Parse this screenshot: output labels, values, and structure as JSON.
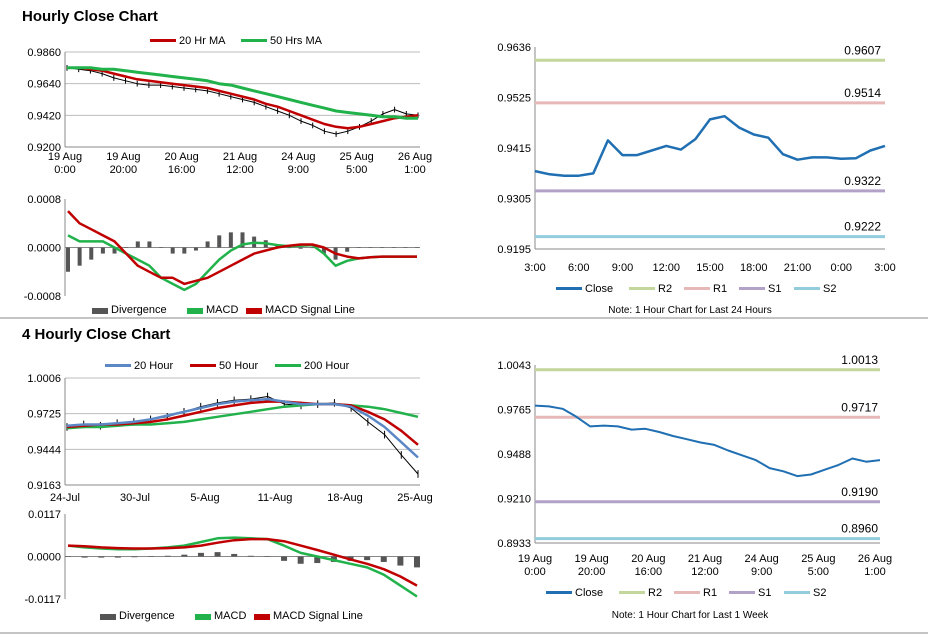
{
  "sections": [
    {
      "title": "Hourly Close Chart"
    },
    {
      "title": "4 Hourly Close Chart"
    }
  ],
  "colors": {
    "close": "#1f6fb2",
    "ma20": "#c00000",
    "ma50": "#21b24b",
    "r2": "#c3d69b",
    "r1": "#e6b9b8",
    "s1": "#b3a2c7",
    "s2": "#93cddd",
    "bars": "#555555",
    "blue_ma": "#5b87c5"
  },
  "chart_data": [
    {
      "id": "hourly_price",
      "type": "line",
      "legend": [
        "20 Hr MA",
        "50 Hrs MA"
      ],
      "ylim": [
        0.92,
        0.986
      ],
      "yticks": [
        "0.9860",
        "0.9640",
        "0.9420",
        "0.9200"
      ],
      "xticks": [
        [
          "19 Aug",
          "0:00"
        ],
        [
          "19 Aug",
          "20:00"
        ],
        [
          "20 Aug",
          "16:00"
        ],
        [
          "21 Aug",
          "12:00"
        ],
        [
          "24 Aug",
          "9:00"
        ],
        [
          "25 Aug",
          "5:00"
        ],
        [
          "26 Aug",
          "1:00"
        ]
      ],
      "price": [
        0.975,
        0.974,
        0.973,
        0.971,
        0.968,
        0.966,
        0.964,
        0.963,
        0.963,
        0.962,
        0.961,
        0.96,
        0.959,
        0.957,
        0.955,
        0.953,
        0.951,
        0.948,
        0.945,
        0.942,
        0.938,
        0.935,
        0.931,
        0.929,
        0.931,
        0.934,
        0.938,
        0.943,
        0.946,
        0.943,
        0.942
      ],
      "series": [
        {
          "name": "20 Hr MA",
          "values": [
            0.975,
            0.975,
            0.974,
            0.973,
            0.971,
            0.969,
            0.967,
            0.966,
            0.965,
            0.964,
            0.963,
            0.962,
            0.961,
            0.959,
            0.957,
            0.955,
            0.953,
            0.95,
            0.948,
            0.945,
            0.942,
            0.939,
            0.936,
            0.934,
            0.933,
            0.934,
            0.936,
            0.938,
            0.94,
            0.941,
            0.942
          ]
        },
        {
          "name": "50 Hrs MA",
          "values": [
            0.975,
            0.975,
            0.975,
            0.974,
            0.974,
            0.973,
            0.972,
            0.971,
            0.97,
            0.969,
            0.968,
            0.967,
            0.966,
            0.964,
            0.963,
            0.961,
            0.959,
            0.957,
            0.955,
            0.953,
            0.951,
            0.949,
            0.947,
            0.945,
            0.944,
            0.943,
            0.942,
            0.941,
            0.941,
            0.94,
            0.94
          ]
        }
      ]
    },
    {
      "id": "hourly_macd",
      "type": "bar",
      "legend": [
        "Divergence",
        "MACD",
        "MACD Signal Line"
      ],
      "ylim": [
        -0.0008,
        0.0008
      ],
      "yticks": [
        "0.0008",
        "0.0000",
        "-0.0008"
      ],
      "macd": [
        0.0002,
        0.0001,
        0.0001,
        0.0001,
        0.0,
        -0.0001,
        -0.0002,
        -0.0003,
        -0.0005,
        -0.0006,
        -0.0007,
        -0.0006,
        -0.0004,
        -0.0002,
        -5e-05,
        5e-05,
        8e-05,
        7e-05,
        4e-05,
        2e-05,
        3e-05,
        4e-05,
        -0.0001,
        -0.0003,
        -0.00022,
        -0.00018,
        -0.00016,
        -0.00015,
        -0.00015,
        -0.00015,
        -0.00015
      ],
      "signal": [
        0.0006,
        0.0004,
        0.0003,
        0.0002,
        0.0001,
        -0.0001,
        -0.0003,
        -0.0004,
        -0.0005,
        -0.0005,
        -0.0006,
        -0.00055,
        -0.0005,
        -0.0004,
        -0.0003,
        -0.0002,
        -0.0001,
        -5e-05,
        0.0,
        3e-05,
        5e-05,
        5e-05,
        0.0,
        -0.0001,
        -0.00015,
        -0.00018,
        -0.00016,
        -0.00015,
        -0.00015,
        -0.00015,
        -0.00015
      ],
      "divergence": [
        -0.0004,
        -0.0003,
        -0.0002,
        -0.0001,
        -0.0001,
        0.0,
        0.0001,
        0.0001,
        0.0,
        -0.0001,
        -0.0001,
        -5e-05,
        0.0001,
        0.0002,
        0.00025,
        0.00025,
        0.00018,
        0.00012,
        4e-05,
        -1e-05,
        -2e-05,
        -1e-05,
        -0.0001,
        -0.0002,
        -7e-05,
        0.0,
        0.0,
        0.0,
        0.0,
        0.0,
        0.0
      ]
    },
    {
      "id": "hourly_levels",
      "type": "line",
      "legend": [
        "Close",
        "R2",
        "R1",
        "S1",
        "S2"
      ],
      "note": "Note: 1 Hour Chart for Last 24 Hours",
      "ylim": [
        0.9195,
        0.9636
      ],
      "yticks": [
        "0.9636",
        "0.9525",
        "0.9415",
        "0.9305",
        "0.9195"
      ],
      "xticks": [
        "3:00",
        "6:00",
        "9:00",
        "12:00",
        "15:00",
        "18:00",
        "21:00",
        "0:00",
        "3:00"
      ],
      "levels": {
        "R2": "0.9607",
        "R1": "0.9514",
        "S1": "0.9322",
        "S2": "0.9222"
      },
      "level_values": [
        0.9607,
        0.9514,
        0.9322,
        0.9222
      ],
      "close": [
        0.9365,
        0.9358,
        0.9355,
        0.9355,
        0.936,
        0.9432,
        0.94,
        0.94,
        0.941,
        0.942,
        0.9412,
        0.9435,
        0.9478,
        0.9485,
        0.946,
        0.9445,
        0.9438,
        0.9402,
        0.939,
        0.9395,
        0.9395,
        0.9392,
        0.9393,
        0.941,
        0.942
      ]
    },
    {
      "id": "4h_price",
      "type": "line",
      "legend": [
        "20 Hour",
        "50 Hour",
        "200 Hour"
      ],
      "ylim": [
        0.9163,
        1.0006
      ],
      "yticks": [
        "1.0006",
        "0.9725",
        "0.9444",
        "0.9163"
      ],
      "xticks": [
        "24-Jul",
        "30-Jul",
        "5-Aug",
        "11-Aug",
        "18-Aug",
        "25-Aug"
      ],
      "price": [
        0.962,
        0.964,
        0.963,
        0.965,
        0.966,
        0.968,
        0.97,
        0.974,
        0.978,
        0.981,
        0.983,
        0.984,
        0.986,
        0.98,
        0.979,
        0.98,
        0.981,
        0.977,
        0.966,
        0.956,
        0.94,
        0.925
      ],
      "series": [
        {
          "name": "20 Hour",
          "values": [
            0.963,
            0.964,
            0.964,
            0.965,
            0.966,
            0.968,
            0.971,
            0.974,
            0.977,
            0.98,
            0.982,
            0.983,
            0.984,
            0.982,
            0.98,
            0.98,
            0.98,
            0.978,
            0.971,
            0.962,
            0.95,
            0.938
          ]
        },
        {
          "name": "50 Hour",
          "values": [
            0.962,
            0.963,
            0.964,
            0.964,
            0.965,
            0.966,
            0.968,
            0.971,
            0.974,
            0.977,
            0.979,
            0.981,
            0.982,
            0.982,
            0.981,
            0.98,
            0.98,
            0.979,
            0.974,
            0.968,
            0.959,
            0.948
          ]
        },
        {
          "name": "200 Hour",
          "values": [
            0.961,
            0.962,
            0.962,
            0.963,
            0.964,
            0.964,
            0.965,
            0.966,
            0.968,
            0.97,
            0.972,
            0.974,
            0.976,
            0.978,
            0.979,
            0.98,
            0.98,
            0.979,
            0.978,
            0.976,
            0.973,
            0.97
          ]
        }
      ]
    },
    {
      "id": "4h_macd",
      "type": "bar",
      "legend": [
        "Divergence",
        "MACD",
        "MACD Signal Line"
      ],
      "ylim": [
        -0.0117,
        0.0117
      ],
      "yticks": [
        "0.0117",
        "0.0000",
        "-0.0117"
      ],
      "macd": [
        0.003,
        0.0025,
        0.0022,
        0.002,
        0.002,
        0.0022,
        0.0025,
        0.003,
        0.004,
        0.005,
        0.0052,
        0.005,
        0.0048,
        0.003,
        0.001,
        0.0,
        -0.001,
        -0.002,
        -0.003,
        -0.005,
        -0.008,
        -0.011
      ],
      "signal": [
        0.003,
        0.0028,
        0.0025,
        0.0023,
        0.0022,
        0.0022,
        0.0023,
        0.0025,
        0.003,
        0.0038,
        0.0045,
        0.0048,
        0.0048,
        0.0042,
        0.003,
        0.0018,
        0.0005,
        -0.0008,
        -0.002,
        -0.0035,
        -0.0055,
        -0.008
      ],
      "divergence": [
        0.0,
        -0.0003,
        -0.0003,
        -0.0003,
        -0.0002,
        0.0,
        0.0002,
        0.0005,
        0.001,
        0.0012,
        0.0007,
        0.0002,
        0.0,
        -0.0012,
        -0.002,
        -0.0018,
        -0.0015,
        -0.0012,
        -0.001,
        -0.0015,
        -0.0025,
        -0.003
      ]
    },
    {
      "id": "4h_levels",
      "type": "line",
      "legend": [
        "Close",
        "R2",
        "R1",
        "S1",
        "S2"
      ],
      "note": "Note: 1 Hour Chart for Last 1 Week",
      "ylim": [
        0.8933,
        1.0043
      ],
      "yticks": [
        "1.0043",
        "0.9765",
        "0.9488",
        "0.9210",
        "0.8933"
      ],
      "xticks": [
        [
          "19 Aug",
          "0:00"
        ],
        [
          "19 Aug",
          "20:00"
        ],
        [
          "20 Aug",
          "16:00"
        ],
        [
          "21 Aug",
          "12:00"
        ],
        [
          "24 Aug",
          "9:00"
        ],
        [
          "25 Aug",
          "5:00"
        ],
        [
          "26 Aug",
          "1:00"
        ]
      ],
      "levels": {
        "R2": "1.0013",
        "R1": "0.9717",
        "S1": "0.9190",
        "S2": "0.8960"
      },
      "level_values": [
        1.0013,
        0.9717,
        0.919,
        0.896
      ],
      "close": [
        0.979,
        0.9785,
        0.977,
        0.972,
        0.966,
        0.9665,
        0.966,
        0.964,
        0.9645,
        0.9625,
        0.96,
        0.958,
        0.956,
        0.9545,
        0.951,
        0.948,
        0.945,
        0.94,
        0.938,
        0.935,
        0.936,
        0.939,
        0.942,
        0.946,
        0.944,
        0.945
      ]
    }
  ]
}
